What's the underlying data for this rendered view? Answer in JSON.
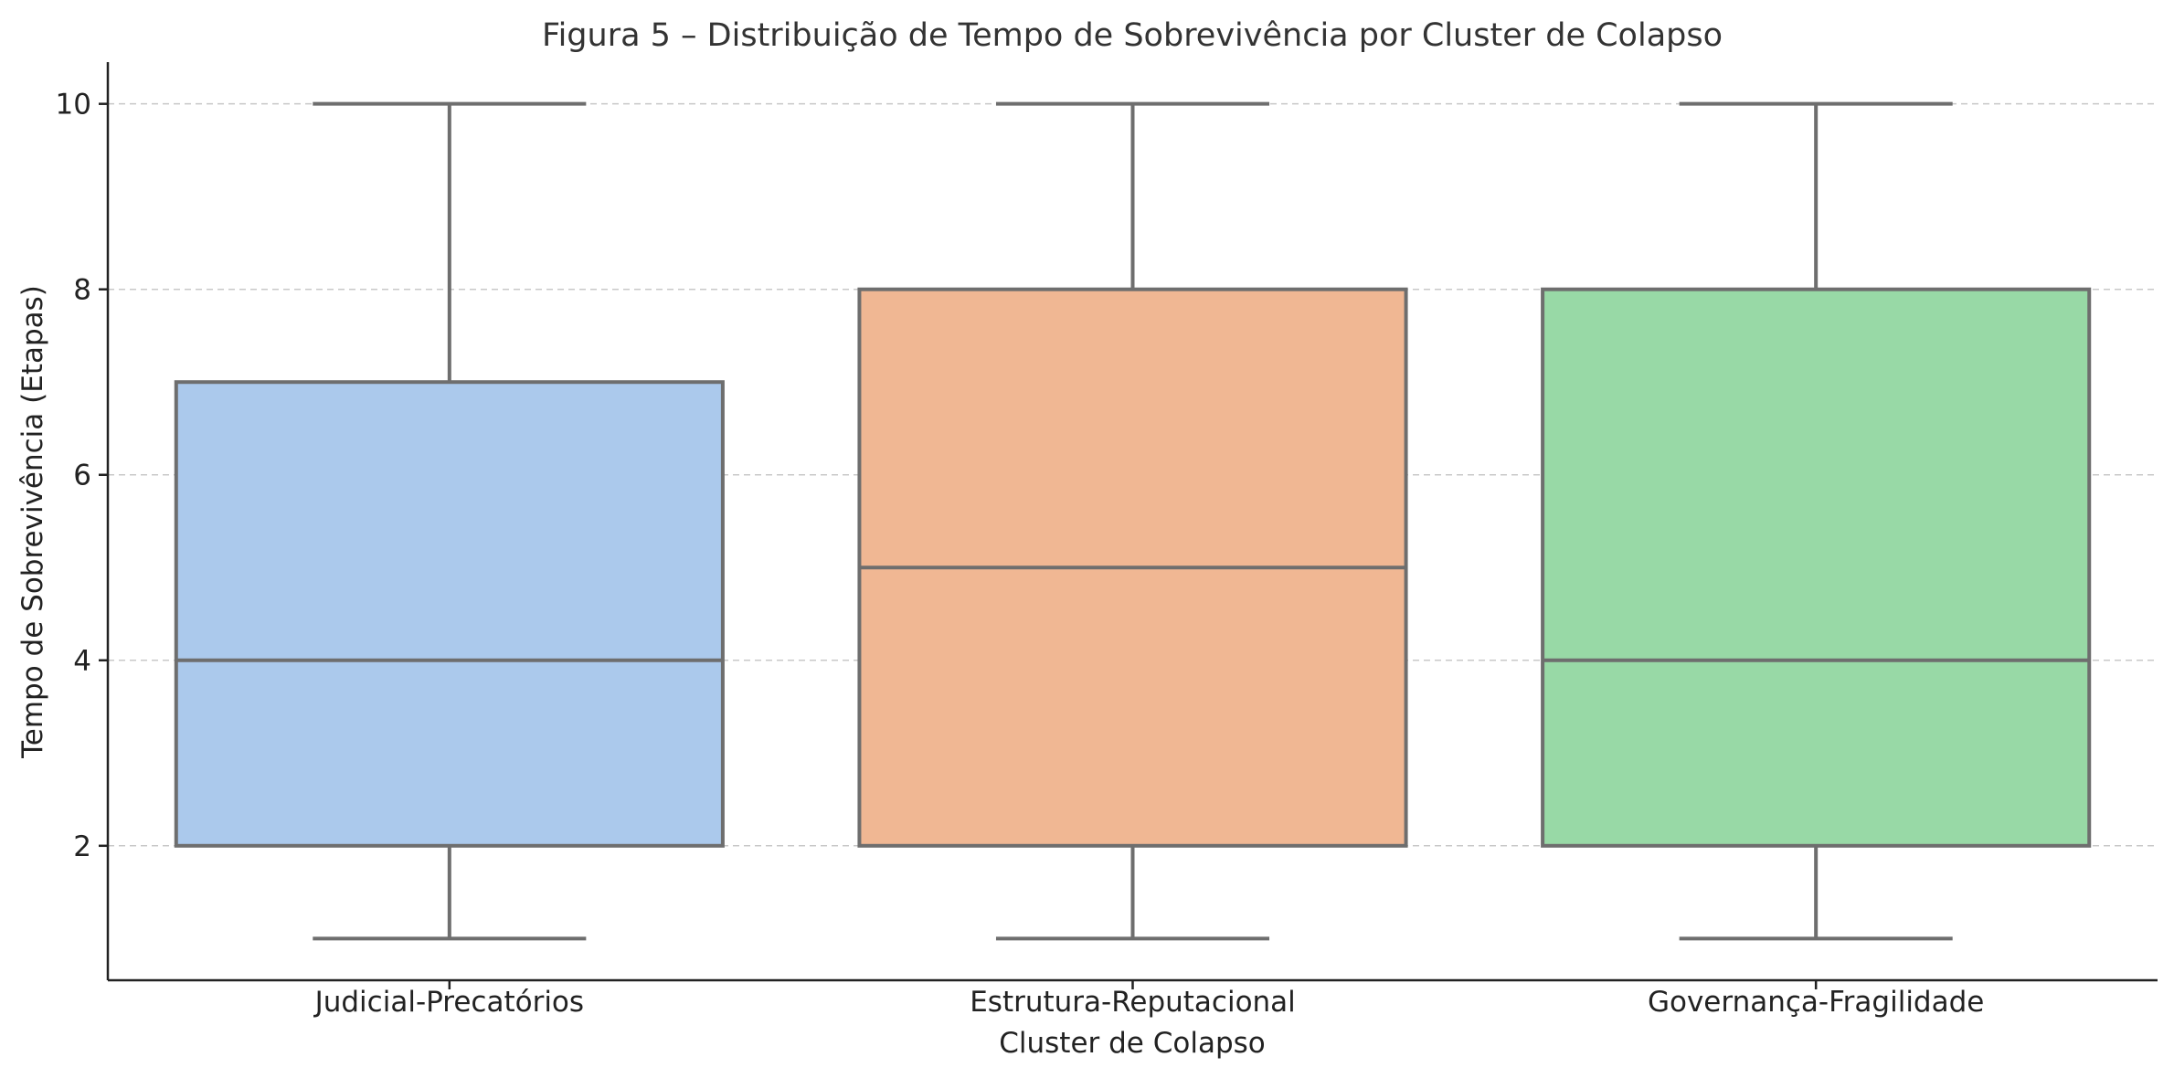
{
  "chart_data": {
    "type": "box",
    "title": "Figura 5 – Distribuição de Tempo de Sobrevivência por Cluster de Colapso",
    "xlabel": "Cluster de Colapso",
    "ylabel": "Tempo de Sobrevivência (Etapas)",
    "ylim": [
      0.55,
      10.45
    ],
    "yticks": [
      2,
      4,
      6,
      8,
      10
    ],
    "grid": "y",
    "categories": [
      "Judicial-Precatórios",
      "Estrutura-Reputacional",
      "Governança-Fragilidade"
    ],
    "boxes": [
      {
        "name": "Judicial-Precatórios",
        "min": 1,
        "q1": 2,
        "median": 4,
        "q3": 7,
        "max": 10,
        "color": "#abc9ec"
      },
      {
        "name": "Estrutura-Reputacional",
        "min": 1,
        "q1": 2,
        "median": 5,
        "q3": 8,
        "max": 10,
        "color": "#f0b793"
      },
      {
        "name": "Governança-Fragilidade",
        "min": 1,
        "q1": 2,
        "median": 4,
        "q3": 8,
        "max": 10,
        "color": "#98d9a6"
      }
    ]
  }
}
